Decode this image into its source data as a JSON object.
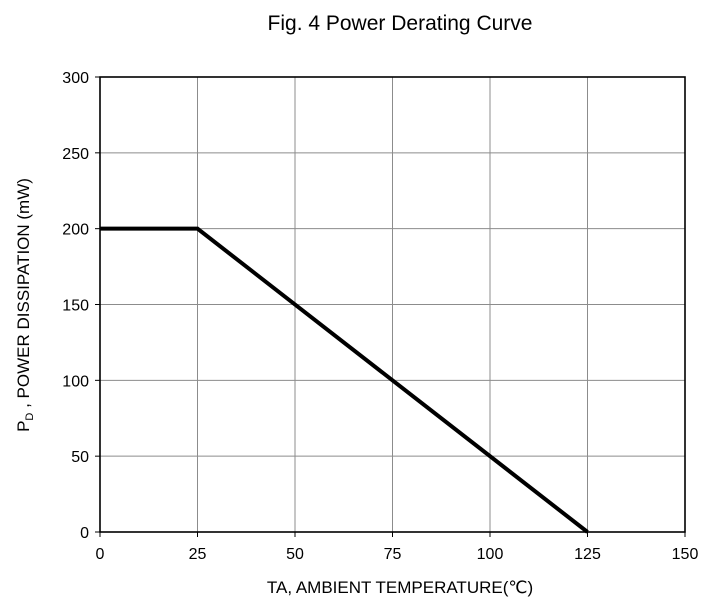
{
  "chart_data": {
    "type": "line",
    "title": "Fig. 4 Power Derating Curve",
    "xlabel": "TA, AMBIENT TEMPERATURE(℃)",
    "ylabel": {
      "main": "P",
      "subscript": "D",
      "rest": " , POWER DISSIPATION (mW)"
    },
    "xlim": [
      0,
      150
    ],
    "ylim": [
      0,
      300
    ],
    "xticks": [
      0,
      25,
      50,
      75,
      100,
      125,
      150
    ],
    "yticks": [
      0,
      50,
      100,
      150,
      200,
      250,
      300
    ],
    "grid": true,
    "series": [
      {
        "x": [
          0,
          25,
          125
        ],
        "y": [
          200,
          200,
          0
        ],
        "color": "#000000"
      }
    ]
  }
}
